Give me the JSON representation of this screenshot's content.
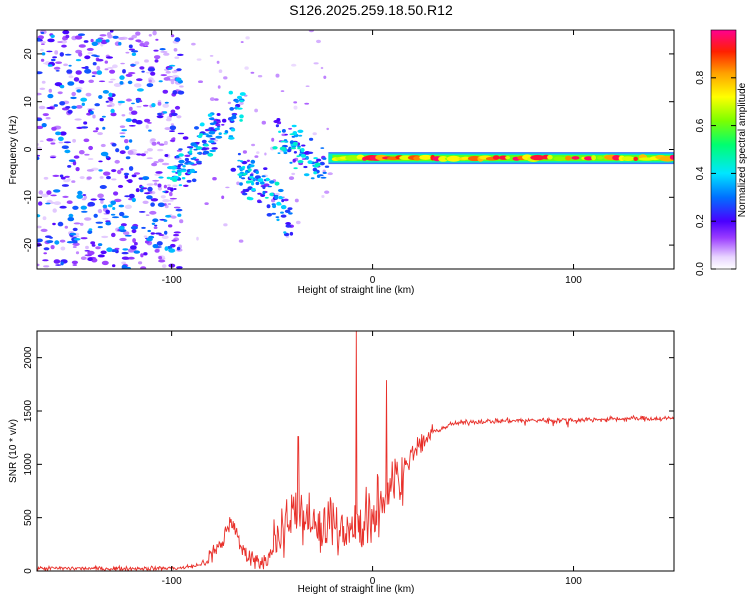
{
  "title": "S126.2025.259.18.50.R12",
  "colors": {
    "snr_line": "#e8302a",
    "axis": "#000000",
    "background": "#ffffff"
  },
  "chart_data": [
    {
      "type": "heatmap",
      "name": "spectrogram",
      "title": "S126.2025.259.18.50.R12",
      "xlabel": "Height of straight line (km)",
      "ylabel": "Frequency (Hz)",
      "xlim": [
        -167,
        150
      ],
      "ylim": [
        -25,
        25
      ],
      "xticks": [
        -100,
        0,
        100
      ],
      "yticks": [
        -20,
        -10,
        0,
        10,
        20
      ],
      "colorbar": {
        "label": "Normalized spectral amplitude",
        "range": [
          0,
          1
        ],
        "ticks": [
          0.0,
          0.2,
          0.4,
          0.6,
          0.8
        ],
        "colormap": "rainbow (white-violet-blue-cyan-green-yellow-red-magenta)"
      },
      "features": [
        {
          "name": "noise region",
          "x_range": [
            -167,
            -95
          ],
          "freq_range": [
            -25,
            25
          ],
          "amplitude": "0.05-0.35"
        },
        {
          "name": "first dispersed group",
          "x_range": [
            -100,
            -62
          ],
          "freq_range": [
            -7,
            11
          ],
          "amplitude": "0.2-0.5"
        },
        {
          "name": "second dispersed group",
          "x_range": [
            -68,
            -18
          ],
          "freq_range": [
            -13,
            6
          ],
          "amplitude": "0.2-0.5"
        },
        {
          "name": "carrier line",
          "x_range": [
            -20,
            150
          ],
          "freq_center": -1.8,
          "amplitude": "0.6-1.0"
        }
      ]
    },
    {
      "type": "line",
      "name": "snr",
      "xlabel": "Height of straight line (km)",
      "ylabel": "SNR (10 * v/v)",
      "xlim": [
        -167,
        150
      ],
      "ylim": [
        0,
        2250
      ],
      "xticks": [
        -100,
        0,
        100
      ],
      "yticks": [
        0,
        500,
        1000,
        1500,
        2000
      ],
      "series": [
        {
          "name": "SNR",
          "x": [
            -167,
            -150,
            -130,
            -110,
            -95,
            -85,
            -80,
            -75,
            -72,
            -70,
            -68,
            -65,
            -60,
            -55,
            -50,
            -45,
            -40,
            -35,
            -30,
            -25,
            -20,
            -15,
            -10,
            -5,
            0,
            5,
            10,
            15,
            20,
            25,
            30,
            40,
            50,
            70,
            90,
            110,
            130,
            150
          ],
          "y": [
            25,
            25,
            22,
            25,
            28,
            60,
            150,
            250,
            420,
            480,
            350,
            200,
            120,
            90,
            150,
            350,
            550,
            500,
            420,
            380,
            350,
            380,
            350,
            420,
            500,
            650,
            800,
            950,
            1100,
            1200,
            1300,
            1380,
            1400,
            1410,
            1415,
            1420,
            1430,
            1430
          ]
        }
      ],
      "spikes": [
        {
          "x": -37,
          "y": 1260
        },
        {
          "x": -8,
          "y": 2250
        },
        {
          "x": 7,
          "y": 1790
        }
      ]
    }
  ]
}
